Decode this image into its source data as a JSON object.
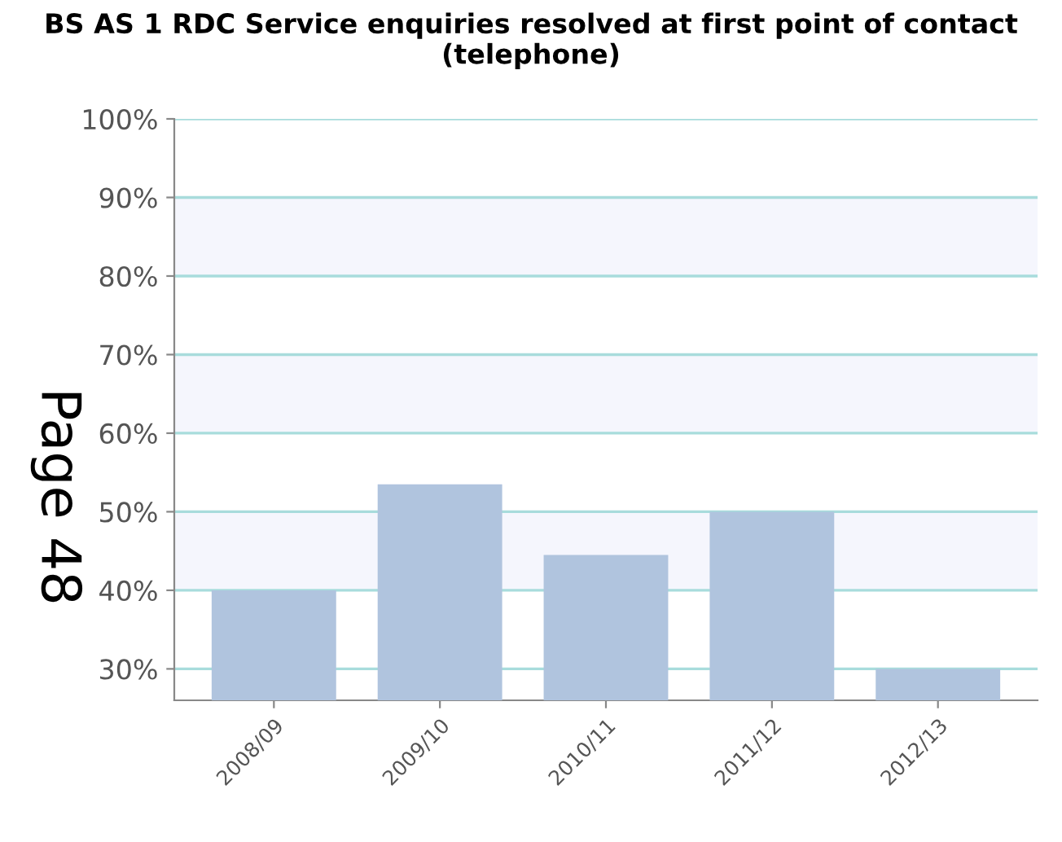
{
  "chart_data": {
    "type": "bar",
    "title": "BS AS 1 RDC Service enquiries resolved at first point of contact (telephone)",
    "categories": [
      "2008/09",
      "2009/10",
      "2010/11",
      "2011/12",
      "2012/13"
    ],
    "values": [
      40,
      53.5,
      44.5,
      50,
      30
    ],
    "color": "#b0c4de",
    "ylim": [
      26,
      100
    ],
    "yticks": [
      {
        "value": 30,
        "label": "30%"
      },
      {
        "value": 40,
        "label": "40%"
      },
      {
        "value": 50,
        "label": "50%"
      },
      {
        "value": 60,
        "label": "60%"
      },
      {
        "value": 70,
        "label": "70%"
      },
      {
        "value": 80,
        "label": "80%"
      },
      {
        "value": 90,
        "label": "90%"
      },
      {
        "value": 100,
        "label": "100%"
      }
    ],
    "grid": "y",
    "bands": [
      {
        "axis": "y",
        "from": 40,
        "to": 50,
        "color": "#f5f6fd"
      },
      {
        "axis": "y",
        "from": 60,
        "to": 70,
        "color": "#f5f6fd"
      },
      {
        "axis": "y",
        "from": 80,
        "to": 90,
        "color": "#f5f6fd"
      }
    ],
    "annotations": [
      "Page 48"
    ]
  }
}
